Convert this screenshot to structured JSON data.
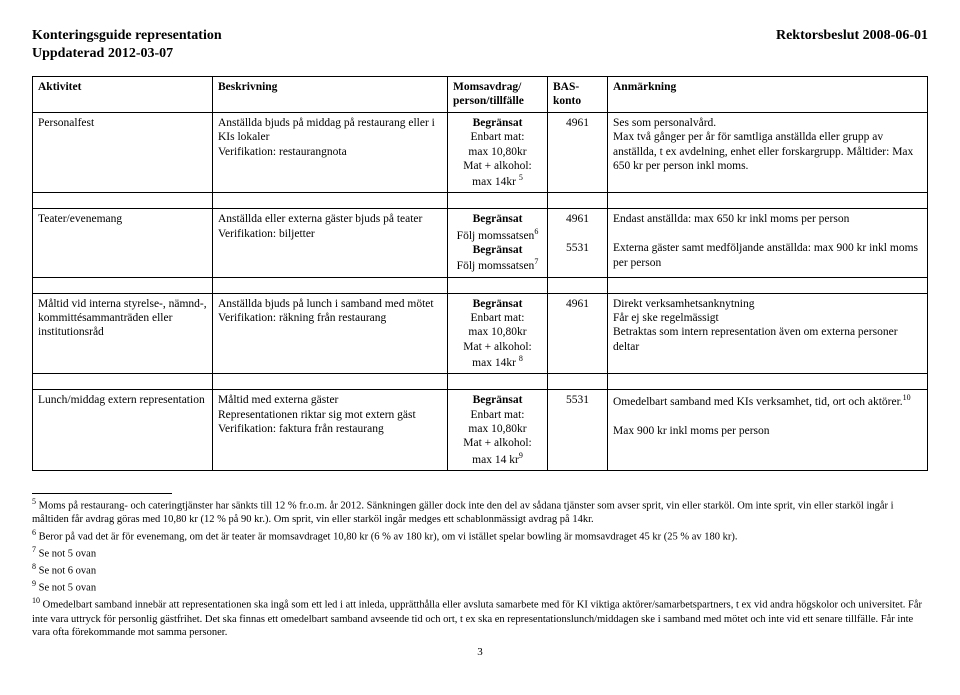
{
  "header": {
    "title_left": "Konteringsguide representation",
    "title_right": "Rektorsbeslut 2008-06-01",
    "updated": "Uppdaterad 2012-03-07"
  },
  "columns": {
    "aktivitet": "Aktivitet",
    "beskrivning": "Beskrivning",
    "momsavdrag": "Momsavdrag/ person/tillfälle",
    "baskonto": "BAS-konto",
    "anmarkning": "Anmärkning"
  },
  "rows": {
    "r1": {
      "aktivitet": "Personalfest",
      "beskrivning_l1": "Anställda bjuds på middag på restaurang eller i KIs lokaler",
      "beskrivning_l2": "Verifikation: restaurangnota",
      "moms_l1": "Begränsat",
      "moms_l2": "Enbart mat:",
      "moms_l3": "max 10,80kr",
      "moms_l4": "Mat + alkohol:",
      "moms_l5": "max 14kr ",
      "moms_sup": "5",
      "bas": "4961",
      "anm_l1": "Ses som personalvård.",
      "anm_l2": "Max två gånger per år för samtliga anställda eller grupp av anställda, t ex avdelning, enhet eller forskargrupp. Måltider: Max 650 kr per person inkl moms."
    },
    "r2": {
      "aktivitet": "Teater/evenemang",
      "beskrivning_l1": "Anställda eller externa gäster bjuds på teater",
      "beskrivning_l2": "Verifikation: biljetter",
      "moms_l1": "Begränsat",
      "moms_l2": "Följ momssatsen",
      "moms_sup1": "6",
      "moms_l3": "Begränsat",
      "moms_l4": "Följ momssatsen",
      "moms_sup2": "7",
      "bas1": "4961",
      "bas2": "5531",
      "anm_l1": "Endast anställda: max 650 kr inkl moms per person",
      "anm_l2": "Externa gäster samt medföljande anställda: max 900 kr inkl moms per person"
    },
    "r3": {
      "aktivitet": "Måltid vid interna styrelse-, nämnd-, kommittésammanträden eller institutionsråd",
      "beskrivning_l1": "Anställda bjuds på lunch i samband med mötet",
      "beskrivning_l2": "Verifikation: räkning från restaurang",
      "moms_l1": "Begränsat",
      "moms_l2": "Enbart mat:",
      "moms_l3": "max 10,80kr",
      "moms_l4": "Mat + alkohol:",
      "moms_l5": "max 14kr ",
      "moms_sup": "8",
      "bas": "4961",
      "anm_l1": "Direkt verksamhetsanknytning",
      "anm_l2": "Får ej ske regelmässigt",
      "anm_l3": "Betraktas som intern representation även om externa personer deltar"
    },
    "r4": {
      "aktivitet": "Lunch/middag extern representation",
      "beskrivning_l1": "Måltid med externa gäster",
      "beskrivning_l2": "Representationen riktar sig mot extern gäst",
      "beskrivning_l3": "Verifikation: faktura från restaurang",
      "moms_l1": "Begränsat",
      "moms_l2": "Enbart mat:",
      "moms_l3": "max 10,80kr",
      "moms_l4": "Mat + alkohol:",
      "moms_l5": "max 14 kr",
      "moms_sup": "9",
      "bas": "5531",
      "anm_l1": "Omedelbart samband med KIs verksamhet, tid, ort och aktörer.",
      "anm_sup": "10",
      "anm_l2": "Max 900 kr inkl moms per person"
    }
  },
  "footnotes": {
    "f5": " Moms på restaurang- och cateringtjänster har sänkts till 12 % fr.o.m. år 2012. Sänkningen gäller dock inte den del av sådana tjänster som avser sprit, vin eller starköl. Om inte sprit, vin eller starköl ingår i måltiden får avdrag göras med 10,80 kr (12 % på 90 kr.). Om sprit, vin eller starköl ingår medges ett schablonmässigt avdrag på 14kr.",
    "f6": " Beror på vad det är för evenemang, om det är teater är momsavdraget 10,80 kr (6 % av 180 kr), om vi istället spelar bowling är momsavdraget 45 kr (25 % av 180 kr).",
    "f7": " Se not 5 ovan",
    "f8": " Se not 6 ovan",
    "f9": " Se not 5 ovan",
    "f10": " Omedelbart samband innebär att representationen ska ingå som ett led i att inleda, upprätthålla eller avsluta samarbete med för KI viktiga aktörer/samarbetspartners, t ex vid andra högskolor och universitet. Får inte vara uttryck för personlig gästfrihet. Det ska finnas ett omedelbart samband avseende tid och ort, t ex ska en representationslunch/middagen ske i samband med mötet och inte vid ett senare tillfälle. Får inte vara ofta förekommande mot samma personer."
  },
  "page": "3"
}
